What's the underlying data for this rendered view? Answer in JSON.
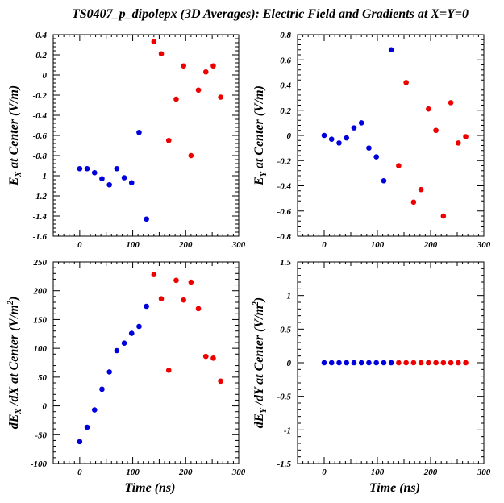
{
  "figure": {
    "title": "TS0407_p_dipolepx (3D Averages): Electric Field and Gradients at X=Y=0",
    "background": "#ffffff",
    "axis_color": "#000000",
    "series_colors": {
      "blue": "#0000dd",
      "red": "#ee0000"
    }
  },
  "chart_data": [
    {
      "id": "ex",
      "type": "scatter",
      "ylabel_main": "E",
      "ylabel_sub": "X",
      "ylabel_rest": " at Center (V/m)",
      "ylabel_sup": "",
      "xlabel": "",
      "xlim": [
        -50,
        300
      ],
      "ylim": [
        -1.6,
        0.4
      ],
      "xticks": [
        0,
        100,
        200,
        300
      ],
      "yticks": [
        -1.6,
        -1.4,
        -1.2,
        -1,
        -0.8,
        -0.6,
        -0.4,
        -0.2,
        0,
        0.2,
        0.4
      ],
      "ytick_labels": [
        "-1.6",
        "-1.4",
        "-1.2",
        "-1",
        "-0.8",
        "-0.6",
        "-0.4",
        "-0.2",
        "0",
        "0.2",
        "0.4"
      ],
      "series": [
        {
          "color": "blue",
          "x": [
            0,
            14,
            28,
            42,
            56,
            70,
            84,
            98,
            112,
            126
          ],
          "y": [
            -0.93,
            -0.93,
            -0.97,
            -1.03,
            -1.09,
            -0.93,
            -1.02,
            -1.07,
            -0.57,
            -1.43
          ]
        },
        {
          "color": "red",
          "x": [
            140,
            154,
            168,
            182,
            196,
            210,
            224,
            238,
            252,
            266
          ],
          "y": [
            0.33,
            0.21,
            -0.65,
            -0.24,
            0.09,
            -0.8,
            -0.15,
            0.03,
            0.09,
            -0.22
          ]
        }
      ]
    },
    {
      "id": "ey",
      "type": "scatter",
      "ylabel_main": "E",
      "ylabel_sub": "Y",
      "ylabel_rest": " at Center (V/m)",
      "ylabel_sup": "",
      "xlabel": "",
      "xlim": [
        -50,
        300
      ],
      "ylim": [
        -0.8,
        0.8
      ],
      "xticks": [
        0,
        100,
        200,
        300
      ],
      "yticks": [
        -0.8,
        -0.6,
        -0.4,
        -0.2,
        0,
        0.2,
        0.4,
        0.6,
        0.8
      ],
      "ytick_labels": [
        "-0.8",
        "-0.6",
        "-0.4",
        "-0.2",
        "0",
        "0.2",
        "0.4",
        "0.6",
        "0.8"
      ],
      "series": [
        {
          "color": "blue",
          "x": [
            0,
            14,
            28,
            42,
            56,
            70,
            84,
            98,
            112,
            126
          ],
          "y": [
            0.0,
            -0.03,
            -0.06,
            -0.02,
            0.06,
            0.1,
            -0.1,
            -0.17,
            -0.36,
            0.68
          ]
        },
        {
          "color": "red",
          "x": [
            140,
            154,
            168,
            182,
            196,
            210,
            224,
            238,
            252,
            266
          ],
          "y": [
            -0.24,
            0.42,
            -0.53,
            -0.43,
            0.21,
            0.04,
            -0.64,
            0.26,
            -0.06,
            -0.01
          ]
        }
      ]
    },
    {
      "id": "dexdx",
      "type": "scatter",
      "ylabel_main": "dE",
      "ylabel_sub": "X",
      "ylabel_rest": " /dX at Center (V/m",
      "ylabel_sup": "2",
      "xlabel": "Time (ns)",
      "xlim": [
        -50,
        300
      ],
      "ylim": [
        -100,
        250
      ],
      "xticks": [
        0,
        100,
        200,
        300
      ],
      "yticks": [
        -100,
        -50,
        0,
        50,
        100,
        150,
        200,
        250
      ],
      "ytick_labels": [
        "-100",
        "-50",
        "0",
        "50",
        "100",
        "150",
        "200",
        "250"
      ],
      "series": [
        {
          "color": "blue",
          "x": [
            0,
            14,
            28,
            42,
            56,
            70,
            84,
            98,
            112,
            126
          ],
          "y": [
            -62,
            -37,
            -7,
            29,
            59,
            96,
            109,
            126,
            138,
            173
          ]
        },
        {
          "color": "red",
          "x": [
            140,
            154,
            168,
            182,
            196,
            210,
            224,
            238,
            252,
            266
          ],
          "y": [
            228,
            186,
            62,
            218,
            184,
            215,
            169,
            86,
            83,
            43
          ]
        }
      ]
    },
    {
      "id": "deydy",
      "type": "scatter",
      "ylabel_main": "dE",
      "ylabel_sub": "Y",
      "ylabel_rest": " /dY at Center (V/m",
      "ylabel_sup": "2",
      "xlabel": "Time (ns)",
      "xlim": [
        -50,
        300
      ],
      "ylim": [
        -1.5,
        1.5
      ],
      "xticks": [
        0,
        100,
        200,
        300
      ],
      "yticks": [
        -1.5,
        -1,
        -0.5,
        0,
        0.5,
        1,
        1.5
      ],
      "ytick_labels": [
        "-1.5",
        "-1",
        "-0.5",
        "0",
        "0.5",
        "1",
        "1.5"
      ],
      "series": [
        {
          "color": "blue",
          "x": [
            0,
            14,
            28,
            42,
            56,
            70,
            84,
            98,
            112,
            126
          ],
          "y": [
            0,
            0,
            0,
            0,
            0,
            0,
            0,
            0,
            0,
            0
          ]
        },
        {
          "color": "red",
          "x": [
            140,
            154,
            168,
            182,
            196,
            210,
            224,
            238,
            252,
            266
          ],
          "y": [
            0,
            0,
            0,
            0,
            0,
            0,
            0,
            0,
            0,
            0
          ]
        }
      ]
    }
  ]
}
